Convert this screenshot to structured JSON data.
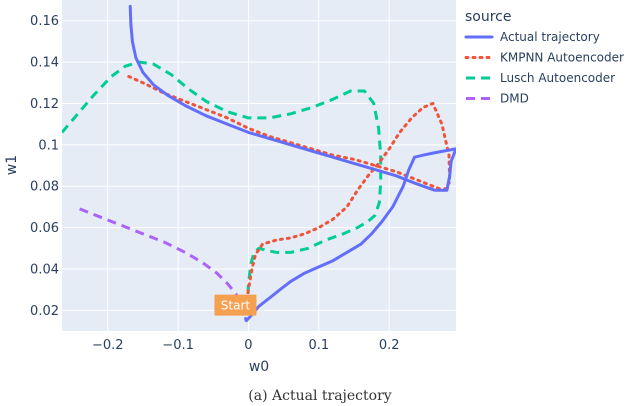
{
  "chart_data": {
    "type": "line",
    "title": "",
    "xlabel": "w0",
    "ylabel": "w1",
    "xlim": [
      -0.265,
      0.295
    ],
    "ylim": [
      0.01,
      0.17
    ],
    "x_ticks": [
      -0.2,
      -0.1,
      0,
      0.1,
      0.2
    ],
    "x_tick_labels": [
      "−0.2",
      "−0.1",
      "0",
      "0.1",
      "0.2"
    ],
    "y_ticks": [
      0.02,
      0.04,
      0.06,
      0.08,
      0.1,
      0.12,
      0.14,
      0.16
    ],
    "y_tick_labels": [
      "0.02",
      "0.04",
      "0.06",
      "0.08",
      "0.1",
      "0.12",
      "0.14",
      "0.16"
    ],
    "grid": true,
    "background": "#e5ecf6",
    "legend": {
      "title": "source",
      "placement": "right"
    },
    "annotation": {
      "text": "Start",
      "x": 0.0,
      "y": 0.016,
      "color": "#f5a050"
    },
    "series": [
      {
        "name": "Actual trajectory",
        "color": "#636efa",
        "dash": "solid",
        "x": [
          -0.168,
          -0.167,
          -0.165,
          -0.16,
          -0.15,
          -0.135,
          -0.115,
          -0.09,
          -0.06,
          -0.03,
          0.0,
          0.03,
          0.06,
          0.09,
          0.12,
          0.15,
          0.18,
          0.21,
          0.24,
          0.265,
          0.282,
          0.286,
          0.288,
          0.295,
          0.278,
          0.262,
          0.248,
          0.236,
          0.228,
          0.22,
          0.205,
          0.19,
          0.175,
          0.16,
          0.14,
          0.12,
          0.1,
          0.08,
          0.06,
          0.045,
          0.03,
          0.015,
          0.005,
          0.0,
          -0.003,
          -0.004
        ],
        "y": [
          0.167,
          0.158,
          0.15,
          0.142,
          0.135,
          0.129,
          0.124,
          0.119,
          0.114,
          0.11,
          0.106,
          0.103,
          0.1,
          0.097,
          0.094,
          0.091,
          0.088,
          0.085,
          0.081,
          0.078,
          0.078,
          0.085,
          0.092,
          0.098,
          0.097,
          0.096,
          0.095,
          0.094,
          0.088,
          0.08,
          0.07,
          0.063,
          0.057,
          0.052,
          0.048,
          0.044,
          0.041,
          0.038,
          0.034,
          0.03,
          0.026,
          0.022,
          0.018,
          0.016,
          0.015,
          0.016
        ]
      },
      {
        "name": "KMPNN Autoencoder",
        "color": "#ef553b",
        "dash": "dot",
        "x": [
          -0.17,
          -0.15,
          -0.12,
          -0.09,
          -0.06,
          -0.03,
          0.0,
          0.03,
          0.06,
          0.09,
          0.12,
          0.15,
          0.18,
          0.21,
          0.24,
          0.262,
          0.278,
          0.286,
          0.285,
          0.275,
          0.262,
          0.248,
          0.232,
          0.215,
          0.2,
          0.185,
          0.17,
          0.155,
          0.14,
          0.12,
          0.1,
          0.08,
          0.06,
          0.04,
          0.02,
          0.01,
          0.005,
          0.0,
          -0.003
        ],
        "y": [
          0.133,
          0.13,
          0.125,
          0.121,
          0.117,
          0.113,
          0.108,
          0.104,
          0.101,
          0.098,
          0.095,
          0.093,
          0.09,
          0.087,
          0.083,
          0.08,
          0.078,
          0.082,
          0.095,
          0.11,
          0.12,
          0.118,
          0.113,
          0.106,
          0.098,
          0.091,
          0.085,
          0.078,
          0.07,
          0.064,
          0.06,
          0.057,
          0.055,
          0.054,
          0.052,
          0.047,
          0.04,
          0.03,
          0.019
        ]
      },
      {
        "name": "Lusch Autoencoder",
        "color": "#00cc96",
        "dash": "dash",
        "x": [
          -0.265,
          -0.245,
          -0.22,
          -0.195,
          -0.175,
          -0.155,
          -0.135,
          -0.11,
          -0.085,
          -0.06,
          -0.03,
          0.0,
          0.03,
          0.06,
          0.09,
          0.12,
          0.145,
          0.165,
          0.178,
          0.185,
          0.188,
          0.188,
          0.186,
          0.18,
          0.17,
          0.155,
          0.135,
          0.11,
          0.085,
          0.06,
          0.04,
          0.025,
          0.015,
          0.008,
          0.003,
          0.0,
          -0.002
        ],
        "y": [
          0.106,
          0.114,
          0.124,
          0.133,
          0.138,
          0.14,
          0.139,
          0.134,
          0.127,
          0.121,
          0.116,
          0.113,
          0.113,
          0.115,
          0.118,
          0.122,
          0.126,
          0.126,
          0.12,
          0.108,
          0.095,
          0.082,
          0.072,
          0.066,
          0.063,
          0.06,
          0.057,
          0.054,
          0.05,
          0.048,
          0.048,
          0.049,
          0.05,
          0.048,
          0.042,
          0.032,
          0.02
        ]
      },
      {
        "name": "DMD",
        "color": "#ab63fa",
        "dash": "dash",
        "x": [
          -0.24,
          -0.21,
          -0.18,
          -0.15,
          -0.12,
          -0.09,
          -0.065,
          -0.045,
          -0.03,
          -0.018,
          -0.01,
          -0.005,
          -0.003
        ],
        "y": [
          0.069,
          0.065,
          0.061,
          0.057,
          0.053,
          0.048,
          0.043,
          0.038,
          0.033,
          0.028,
          0.023,
          0.019,
          0.015
        ]
      }
    ]
  },
  "caption": "(a) Actual trajectory"
}
